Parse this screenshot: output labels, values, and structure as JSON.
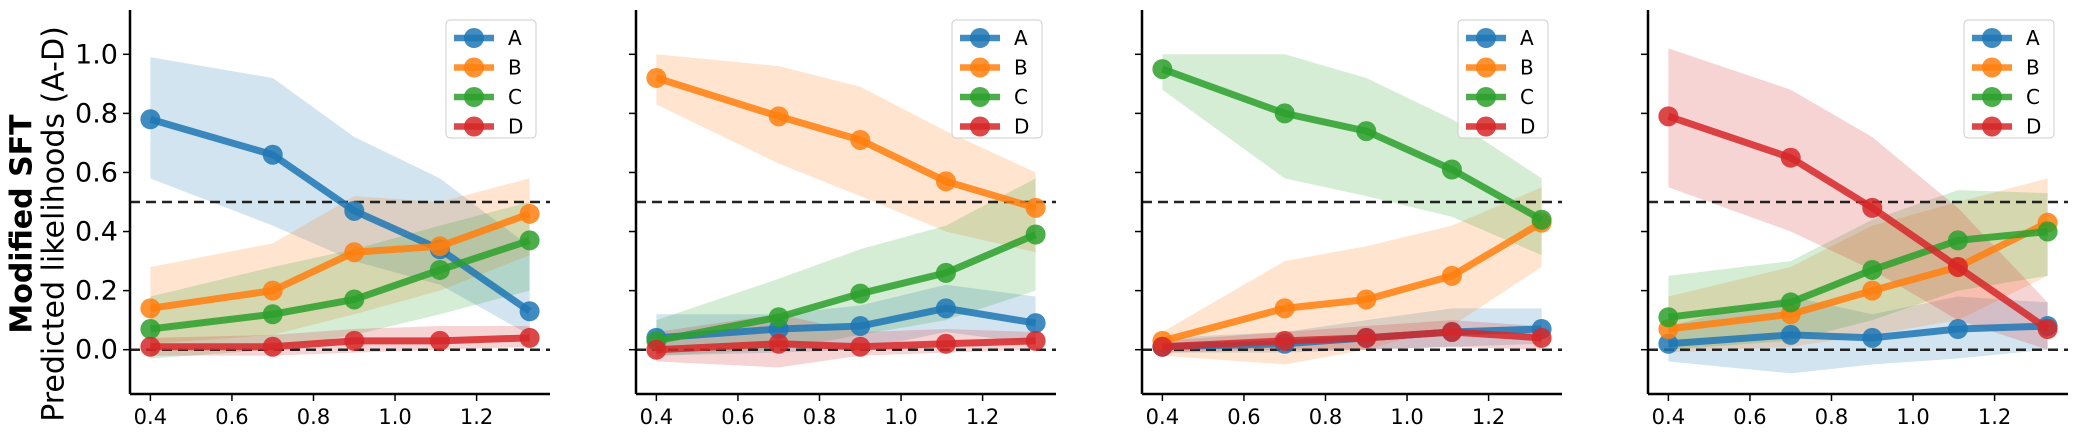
{
  "figure": {
    "ylabel_bold": "Modified SFT",
    "ylabel": "Predicted likelihoods (A-D)"
  },
  "chart_data": [
    {
      "type": "line",
      "x": [
        0.4,
        0.7,
        0.9,
        1.11,
        1.33
      ],
      "xlim": [
        0.35,
        1.38
      ],
      "ylim": [
        -0.15,
        1.15
      ],
      "xticks": [
        "0.4",
        "0.6",
        "0.8",
        "1.0",
        "1.2"
      ],
      "yticks": [
        "0.0",
        "0.2",
        "0.4",
        "0.6",
        "0.8",
        "1.0"
      ],
      "hlines": [
        0.0,
        0.5
      ],
      "legend_position": "top-right",
      "series": [
        {
          "name": "A",
          "color": "#1f77b4",
          "values": [
            0.78,
            0.66,
            0.47,
            0.34,
            0.13
          ],
          "lower": [
            0.58,
            0.42,
            0.3,
            0.22,
            0.05
          ],
          "upper": [
            0.99,
            0.92,
            0.72,
            0.58,
            0.35
          ]
        },
        {
          "name": "B",
          "color": "#ff7f0e",
          "values": [
            0.14,
            0.2,
            0.33,
            0.35,
            0.46
          ],
          "lower": [
            0.02,
            0.05,
            0.12,
            0.2,
            0.32
          ],
          "upper": [
            0.28,
            0.36,
            0.52,
            0.5,
            0.58
          ]
        },
        {
          "name": "C",
          "color": "#2ca02c",
          "values": [
            0.07,
            0.12,
            0.17,
            0.27,
            0.37
          ],
          "lower": [
            -0.03,
            0.0,
            0.05,
            0.12,
            0.2
          ],
          "upper": [
            0.18,
            0.28,
            0.34,
            0.42,
            0.5
          ]
        },
        {
          "name": "D",
          "color": "#d62728",
          "values": [
            0.01,
            0.01,
            0.03,
            0.03,
            0.04
          ],
          "lower": [
            -0.02,
            -0.02,
            -0.01,
            0.0,
            0.01
          ],
          "upper": [
            0.04,
            0.05,
            0.07,
            0.08,
            0.08
          ]
        }
      ]
    },
    {
      "type": "line",
      "x": [
        0.4,
        0.7,
        0.9,
        1.11,
        1.33
      ],
      "xlim": [
        0.35,
        1.38
      ],
      "ylim": [
        -0.15,
        1.15
      ],
      "xticks": [
        "0.4",
        "0.6",
        "0.8",
        "1.0",
        "1.2"
      ],
      "yticks": [],
      "hlines": [
        0.0,
        0.5
      ],
      "legend_position": "top-right",
      "series": [
        {
          "name": "A",
          "color": "#1f77b4",
          "values": [
            0.04,
            0.07,
            0.08,
            0.14,
            0.09
          ],
          "lower": [
            -0.02,
            -0.01,
            0.0,
            0.06,
            0.02
          ],
          "upper": [
            0.12,
            0.12,
            0.15,
            0.22,
            0.18
          ]
        },
        {
          "name": "B",
          "color": "#ff7f0e",
          "values": [
            0.92,
            0.79,
            0.71,
            0.57,
            0.48
          ],
          "lower": [
            0.83,
            0.63,
            0.52,
            0.4,
            0.33
          ],
          "upper": [
            1.0,
            0.96,
            0.89,
            0.74,
            0.6
          ]
        },
        {
          "name": "C",
          "color": "#2ca02c",
          "values": [
            0.03,
            0.11,
            0.19,
            0.26,
            0.39
          ],
          "lower": [
            -0.02,
            0.0,
            0.05,
            0.1,
            0.2
          ],
          "upper": [
            0.1,
            0.24,
            0.34,
            0.42,
            0.58
          ]
        },
        {
          "name": "D",
          "color": "#d62728",
          "values": [
            0.0,
            0.02,
            0.01,
            0.02,
            0.03
          ],
          "lower": [
            -0.04,
            -0.06,
            -0.02,
            -0.01,
            0.0
          ],
          "upper": [
            0.06,
            0.12,
            0.06,
            0.07,
            0.06
          ]
        }
      ]
    },
    {
      "type": "line",
      "x": [
        0.4,
        0.7,
        0.9,
        1.11,
        1.33
      ],
      "xlim": [
        0.35,
        1.38
      ],
      "ylim": [
        -0.15,
        1.15
      ],
      "xticks": [
        "0.4",
        "0.6",
        "0.8",
        "1.0",
        "1.2"
      ],
      "yticks": [],
      "hlines": [
        0.0,
        0.5
      ],
      "legend_position": "top-right",
      "series": [
        {
          "name": "A",
          "color": "#1f77b4",
          "values": [
            0.01,
            0.02,
            0.04,
            0.06,
            0.07
          ],
          "lower": [
            -0.01,
            -0.01,
            0.0,
            0.01,
            0.02
          ],
          "upper": [
            0.04,
            0.06,
            0.1,
            0.14,
            0.14
          ]
        },
        {
          "name": "B",
          "color": "#ff7f0e",
          "values": [
            0.03,
            0.14,
            0.17,
            0.25,
            0.43
          ],
          "lower": [
            -0.02,
            -0.05,
            0.0,
            0.08,
            0.28
          ],
          "upper": [
            0.06,
            0.3,
            0.35,
            0.42,
            0.55
          ]
        },
        {
          "name": "C",
          "color": "#2ca02c",
          "values": [
            0.95,
            0.8,
            0.74,
            0.61,
            0.44
          ],
          "lower": [
            0.88,
            0.58,
            0.52,
            0.45,
            0.32
          ],
          "upper": [
            1.0,
            1.0,
            0.92,
            0.78,
            0.58
          ]
        },
        {
          "name": "D",
          "color": "#d62728",
          "values": [
            0.01,
            0.03,
            0.04,
            0.06,
            0.04
          ],
          "lower": [
            -0.01,
            0.0,
            0.0,
            0.01,
            0.0
          ],
          "upper": [
            0.03,
            0.06,
            0.08,
            0.1,
            0.08
          ]
        }
      ]
    },
    {
      "type": "line",
      "x": [
        0.4,
        0.7,
        0.9,
        1.11,
        1.33
      ],
      "xlim": [
        0.35,
        1.38
      ],
      "ylim": [
        -0.15,
        1.15
      ],
      "xticks": [
        "0.4",
        "0.6",
        "0.8",
        "1.0",
        "1.2"
      ],
      "yticks": [],
      "hlines": [
        0.0,
        0.5
      ],
      "legend_position": "top-right",
      "series": [
        {
          "name": "A",
          "color": "#1f77b4",
          "values": [
            0.02,
            0.05,
            0.04,
            0.07,
            0.08
          ],
          "lower": [
            -0.04,
            -0.08,
            -0.05,
            -0.03,
            0.0
          ],
          "upper": [
            0.08,
            0.18,
            0.12,
            0.18,
            0.16
          ]
        },
        {
          "name": "B",
          "color": "#ff7f0e",
          "values": [
            0.07,
            0.12,
            0.2,
            0.28,
            0.43
          ],
          "lower": [
            -0.01,
            0.01,
            0.05,
            0.1,
            0.25
          ],
          "upper": [
            0.18,
            0.28,
            0.42,
            0.5,
            0.58
          ]
        },
        {
          "name": "C",
          "color": "#2ca02c",
          "values": [
            0.11,
            0.16,
            0.27,
            0.37,
            0.4
          ],
          "lower": [
            0.0,
            0.03,
            0.1,
            0.2,
            0.25
          ],
          "upper": [
            0.25,
            0.3,
            0.44,
            0.54,
            0.53
          ]
        },
        {
          "name": "D",
          "color": "#d62728",
          "values": [
            0.79,
            0.65,
            0.48,
            0.28,
            0.07
          ],
          "lower": [
            0.55,
            0.4,
            0.27,
            0.1,
            0.0
          ],
          "upper": [
            1.02,
            0.88,
            0.72,
            0.48,
            0.16
          ]
        }
      ]
    }
  ]
}
